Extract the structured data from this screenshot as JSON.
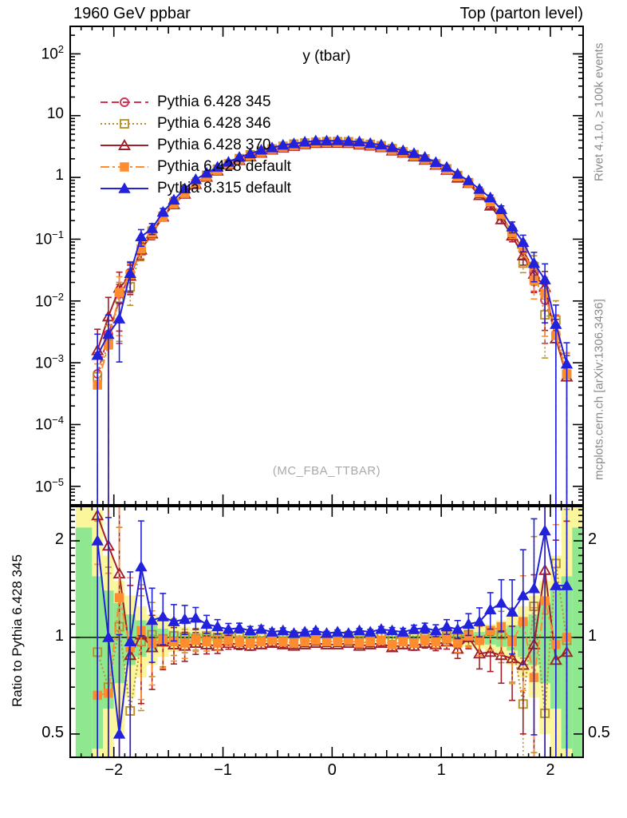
{
  "header": {
    "left": "1960 GeV ppbar",
    "right": "Top (parton level)"
  },
  "plot_title": "y (tbar)",
  "watermark": "(MC_FBA_TTBAR)",
  "side_labels": {
    "top": "Rivet 4.1.0, ≥ 100k events",
    "bottom": "mcplots.cern.ch [arXiv:1306.3436]"
  },
  "ratio_ylabel": "Ratio to Pythia 6.428 345",
  "colors": {
    "band_yellow": "#fbf59b",
    "band_green": "#8fe88f",
    "frame": "#000000",
    "gray_text": "#8a8a8a",
    "watermark": "#a9a9a9"
  },
  "chart_data": {
    "type": "line",
    "title": "y (tbar)",
    "x_axis": {
      "min": -2.4,
      "max": 2.3,
      "major_ticks": [
        -2,
        -1,
        0,
        1,
        2
      ]
    },
    "main_axis": {
      "scale": "log",
      "decades": [
        2,
        1,
        0,
        -1,
        -2,
        -3,
        -4,
        -5
      ],
      "top_exp": 2.445,
      "bottom_exp": -5.3
    },
    "ratio_axis": {
      "scale": "log",
      "ticks": [
        2,
        1,
        0.5
      ],
      "top": 2.56,
      "bottom": 0.423
    },
    "x": [
      -2.15,
      -2.05,
      -1.95,
      -1.85,
      -1.75,
      -1.65,
      -1.55,
      -1.45,
      -1.35,
      -1.25,
      -1.15,
      -1.05,
      -0.95,
      -0.85,
      -0.75,
      -0.65,
      -0.55,
      -0.45,
      -0.35,
      -0.25,
      -0.15,
      -0.05,
      0.05,
      0.15,
      0.25,
      0.35,
      0.45,
      0.55,
      0.65,
      0.75,
      0.85,
      0.95,
      1.05,
      1.15,
      1.25,
      1.35,
      1.45,
      1.55,
      1.65,
      1.75,
      1.85,
      1.95,
      2.05,
      2.15
    ],
    "ref_values": [
      0.00066,
      0.00289,
      0.0103,
      0.0288,
      0.0662,
      0.132,
      0.237,
      0.385,
      0.575,
      0.806,
      1.07,
      1.36,
      1.67,
      1.99,
      2.31,
      2.62,
      2.91,
      3.18,
      3.42,
      3.6,
      3.73,
      3.79,
      3.79,
      3.73,
      3.6,
      3.42,
      3.18,
      2.91,
      2.62,
      2.31,
      1.99,
      1.67,
      1.36,
      1.07,
      0.806,
      0.575,
      0.385,
      0.237,
      0.132,
      0.0662,
      0.0288,
      0.0103,
      0.00289,
      0.00066
    ],
    "rel_err": [
      1.2,
      1.05,
      0.8,
      0.5,
      0.3,
      0.2,
      0.14,
      0.1,
      0.08,
      0.06,
      0.05,
      0.04,
      0.033,
      0.027,
      0.023,
      0.02,
      0.017,
      0.015,
      0.013,
      0.012,
      0.011,
      0.011,
      0.011,
      0.011,
      0.012,
      0.013,
      0.015,
      0.017,
      0.02,
      0.023,
      0.027,
      0.033,
      0.04,
      0.05,
      0.06,
      0.08,
      0.1,
      0.14,
      0.2,
      0.3,
      0.5,
      0.8,
      1.05,
      1.2
    ],
    "series": [
      {
        "name": "Pythia 6.428 345",
        "color": "#cc3355",
        "dash": "9,5",
        "marker": "circle",
        "filled": false,
        "in_ratio": false,
        "ratio": [
          1,
          1,
          1,
          1,
          1,
          1,
          1,
          1,
          1,
          1,
          1,
          1,
          1,
          1,
          1,
          1,
          1,
          1,
          1,
          1,
          1,
          1,
          1,
          1,
          1,
          1,
          1,
          1,
          1,
          1,
          1,
          1,
          1,
          1,
          1,
          1,
          1,
          1,
          1,
          1,
          1,
          1,
          1,
          1
        ]
      },
      {
        "name": "Pythia 6.428 346",
        "color": "#b8912f",
        "dash": "2,3",
        "marker": "square",
        "filled": false,
        "in_ratio": true,
        "ratio": [
          0.9,
          0.7,
          1.08,
          0.59,
          0.97,
          1.02,
          0.99,
          1.01,
          1.0,
          0.99,
          1.01,
          1.0,
          0.99,
          1.01,
          1.0,
          1.01,
          0.99,
          1.0,
          1.01,
          1.0,
          0.99,
          1.0,
          1.0,
          1.01,
          0.99,
          1.0,
          1.02,
          1.0,
          0.99,
          1.01,
          1.0,
          0.99,
          1.01,
          1.0,
          1.02,
          0.98,
          1.05,
          1.02,
          0.98,
          0.62,
          1.25,
          0.58,
          1.7,
          0.98
        ]
      },
      {
        "name": "Pythia 6.428 370",
        "color": "#a1202a",
        "dash": "",
        "marker": "triangle",
        "filled": false,
        "in_ratio": true,
        "ratio": [
          2.4,
          1.93,
          1.58,
          0.88,
          1.02,
          0.93,
          0.97,
          0.95,
          0.94,
          0.96,
          0.95,
          0.94,
          0.96,
          0.95,
          0.94,
          0.95,
          0.96,
          0.95,
          0.94,
          0.95,
          0.96,
          0.95,
          0.95,
          0.96,
          0.94,
          0.95,
          0.96,
          0.93,
          0.95,
          0.94,
          0.96,
          0.95,
          0.97,
          0.92,
          1.0,
          0.89,
          0.9,
          0.88,
          0.86,
          0.82,
          0.95,
          1.62,
          0.85,
          0.9
        ]
      },
      {
        "name": "Pythia 6.428 default",
        "color": "#ff8c2e",
        "dash": "11,4,3,4",
        "marker": "square",
        "filled": true,
        "in_ratio": true,
        "ratio": [
          0.66,
          0.67,
          1.33,
          0.93,
          1.05,
          0.96,
          0.98,
          0.97,
          0.96,
          0.98,
          0.97,
          0.96,
          0.98,
          0.97,
          0.96,
          0.97,
          0.98,
          0.97,
          0.96,
          0.97,
          0.98,
          0.97,
          0.97,
          0.98,
          0.96,
          0.97,
          0.98,
          0.95,
          0.97,
          0.96,
          0.98,
          0.97,
          0.99,
          0.96,
          1.01,
          0.98,
          1.05,
          1.08,
          0.97,
          1.12,
          0.75,
          1.3,
          0.95,
          1.0
        ]
      },
      {
        "name": "Pythia 8.315 default",
        "color": "#2222dd",
        "dash": "",
        "marker": "triangle",
        "filled": true,
        "in_ratio": true,
        "ratio": [
          2.0,
          1.0,
          0.5,
          0.97,
          1.66,
          1.13,
          1.16,
          1.12,
          1.14,
          1.15,
          1.1,
          1.08,
          1.06,
          1.07,
          1.05,
          1.06,
          1.04,
          1.05,
          1.03,
          1.04,
          1.05,
          1.03,
          1.04,
          1.03,
          1.05,
          1.04,
          1.06,
          1.05,
          1.04,
          1.06,
          1.07,
          1.05,
          1.08,
          1.06,
          1.1,
          1.12,
          1.22,
          1.28,
          1.2,
          1.35,
          1.42,
          2.15,
          1.45,
          1.45
        ]
      }
    ],
    "ratio_bands": [
      [
        -2.35,
        -2.2,
        2.0,
        1.2
      ],
      [
        -2.2,
        -2.1,
        1.5,
        0.55
      ],
      [
        -2.1,
        -2.0,
        0.8,
        0.4
      ],
      [
        -2.0,
        -1.9,
        0.5,
        0.28
      ],
      [
        -1.9,
        -1.8,
        0.35,
        0.18
      ],
      [
        -1.8,
        -1.7,
        0.25,
        0.13
      ],
      [
        -1.7,
        -1.6,
        0.18,
        0.09
      ],
      [
        -1.6,
        -1.5,
        0.13,
        0.065
      ],
      [
        -1.5,
        -1.4,
        0.1,
        0.05
      ],
      [
        -1.4,
        -1.3,
        0.08,
        0.04
      ],
      [
        -1.3,
        -1.2,
        0.065,
        0.032
      ],
      [
        -1.2,
        -1.1,
        0.052,
        0.026
      ],
      [
        -1.1,
        -1.0,
        0.043,
        0.021
      ],
      [
        -1.0,
        -0.9,
        0.036,
        0.018
      ],
      [
        -0.9,
        -0.8,
        0.03,
        0.015
      ],
      [
        -0.8,
        -0.7,
        0.026,
        0.013
      ],
      [
        -0.7,
        -0.6,
        0.023,
        0.011
      ],
      [
        -0.6,
        -0.5,
        0.02,
        0.01
      ],
      [
        -0.5,
        -0.4,
        0.018,
        0.009
      ],
      [
        -0.4,
        -0.3,
        0.017,
        0.008
      ],
      [
        -0.3,
        -0.2,
        0.016,
        0.008
      ],
      [
        -0.2,
        -0.1,
        0.015,
        0.0075
      ],
      [
        -0.1,
        0.0,
        0.015,
        0.0075
      ],
      [
        0.0,
        0.1,
        0.015,
        0.0075
      ],
      [
        0.1,
        0.2,
        0.015,
        0.0075
      ],
      [
        0.2,
        0.3,
        0.016,
        0.008
      ],
      [
        0.3,
        0.4,
        0.017,
        0.008
      ],
      [
        0.4,
        0.5,
        0.018,
        0.009
      ],
      [
        0.5,
        0.6,
        0.02,
        0.01
      ],
      [
        0.6,
        0.7,
        0.023,
        0.011
      ],
      [
        0.7,
        0.8,
        0.026,
        0.013
      ],
      [
        0.8,
        0.9,
        0.03,
        0.015
      ],
      [
        0.9,
        1.0,
        0.036,
        0.018
      ],
      [
        1.0,
        1.1,
        0.043,
        0.021
      ],
      [
        1.1,
        1.2,
        0.052,
        0.026
      ],
      [
        1.2,
        1.3,
        0.065,
        0.032
      ],
      [
        1.3,
        1.4,
        0.08,
        0.04
      ],
      [
        1.4,
        1.5,
        0.1,
        0.05
      ],
      [
        1.5,
        1.6,
        0.13,
        0.065
      ],
      [
        1.6,
        1.7,
        0.18,
        0.09
      ],
      [
        1.7,
        1.8,
        0.25,
        0.13
      ],
      [
        1.8,
        1.9,
        0.35,
        0.18
      ],
      [
        1.9,
        2.0,
        0.5,
        0.28
      ],
      [
        2.0,
        2.1,
        0.8,
        0.4
      ],
      [
        2.1,
        2.2,
        1.5,
        0.55
      ],
      [
        2.2,
        2.35,
        2.0,
        1.2
      ]
    ]
  }
}
